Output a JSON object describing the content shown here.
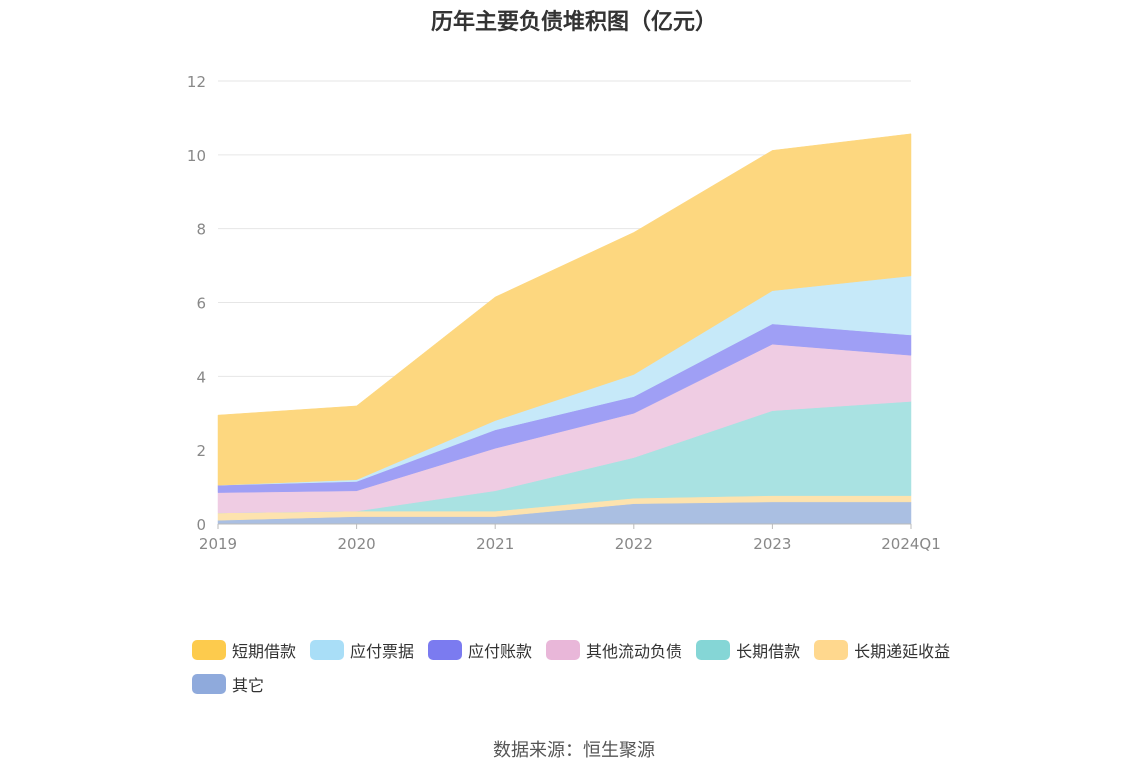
{
  "source_label": "数据来源：恒生聚源",
  "chart_data": {
    "type": "area",
    "stacked": true,
    "title": "历年主要负债堆积图（亿元）",
    "categories": [
      "2019",
      "2020",
      "2021",
      "2022",
      "2023",
      "2024Q1"
    ],
    "ylim": [
      0,
      12
    ],
    "yticks": [
      0,
      2,
      4,
      6,
      8,
      10,
      12
    ],
    "grid": true,
    "legend_position": "bottom",
    "series": [
      {
        "name": "其它",
        "legend_color": "#8FAADC",
        "color": "#AABFE2",
        "values": [
          0.1,
          0.2,
          0.2,
          0.55,
          0.6,
          0.6
        ]
      },
      {
        "name": "长期递延收益",
        "legend_color": "#FFD88E",
        "color": "#FDE3AE",
        "values": [
          0.2,
          0.15,
          0.15,
          0.15,
          0.17,
          0.17
        ]
      },
      {
        "name": "长期借款",
        "legend_color": "#85D6D6",
        "color": "#A9E2E2",
        "values": [
          0.0,
          0.0,
          0.55,
          1.1,
          2.3,
          2.55
        ]
      },
      {
        "name": "其他流动负债",
        "legend_color": "#E9B7D9",
        "color": "#EFCCE3",
        "values": [
          0.55,
          0.55,
          1.15,
          1.2,
          1.8,
          1.25
        ]
      },
      {
        "name": "应付账款",
        "legend_color": "#7B7BF0",
        "color": "#9F9FF5",
        "values": [
          0.2,
          0.25,
          0.5,
          0.45,
          0.55,
          0.55
        ]
      },
      {
        "name": "应付票据",
        "legend_color": "#A9DEF7",
        "color": "#C6E9F9",
        "values": [
          0.0,
          0.05,
          0.25,
          0.6,
          0.9,
          1.6
        ]
      },
      {
        "name": "短期借款",
        "legend_color": "#FDCB4D",
        "color": "#FDD77F",
        "values": [
          1.9,
          2.0,
          3.35,
          3.85,
          3.8,
          3.85
        ]
      }
    ]
  }
}
